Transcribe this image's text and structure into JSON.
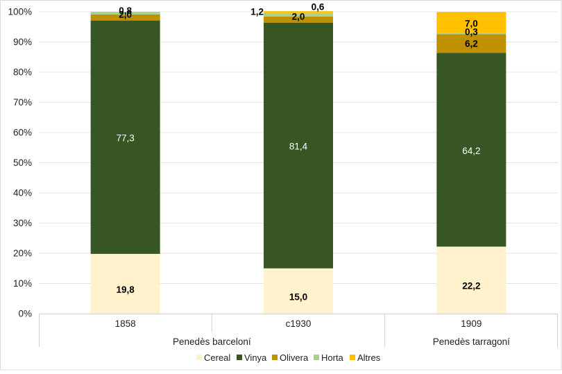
{
  "chart_data": {
    "type": "bar",
    "stacked": true,
    "percent": true,
    "categories": [
      "1858",
      "c1930",
      "1909"
    ],
    "groups": [
      {
        "label": "Penedès barceloní",
        "categories": [
          "1858",
          "c1930"
        ]
      },
      {
        "label": "Penedès tarragoní",
        "categories": [
          "1909"
        ]
      }
    ],
    "series": [
      {
        "name": "Cereal",
        "color": "#FFF2CC",
        "label_color": "#000000",
        "bold": true,
        "values": [
          19.8,
          15.0,
          22.2
        ],
        "labels": [
          "19,8",
          "15,0",
          "22,2"
        ]
      },
      {
        "name": "Vinya",
        "color": "#375623",
        "label_color": "#ffffff",
        "bold": false,
        "values": [
          77.3,
          81.4,
          64.2
        ],
        "labels": [
          "77,3",
          "81,4",
          "64,2"
        ]
      },
      {
        "name": "Olivera",
        "color": "#BF9000",
        "label_color": "#000000",
        "bold": true,
        "values": [
          2.0,
          2.0,
          6.2
        ],
        "labels": [
          "2,0",
          "2,0",
          "6,2"
        ]
      },
      {
        "name": "Horta",
        "color": "#A9D08E",
        "label_color": "#000000",
        "bold": true,
        "values": [
          0.8,
          1.2,
          0.3
        ],
        "labels": [
          "0,8",
          "1,2",
          "0,3"
        ]
      },
      {
        "name": "Altres",
        "color": "#FFC000",
        "label_color": "#000000",
        "bold": true,
        "values": [
          0.1,
          0.6,
          7.0
        ],
        "labels": [
          "",
          "0,6",
          "7,0"
        ]
      }
    ],
    "yticks": [
      "0%",
      "10%",
      "20%",
      "30%",
      "40%",
      "50%",
      "60%",
      "70%",
      "80%",
      "90%",
      "100%"
    ],
    "ylim": [
      0,
      100
    ],
    "grid": true,
    "legend_position": "bottom"
  }
}
